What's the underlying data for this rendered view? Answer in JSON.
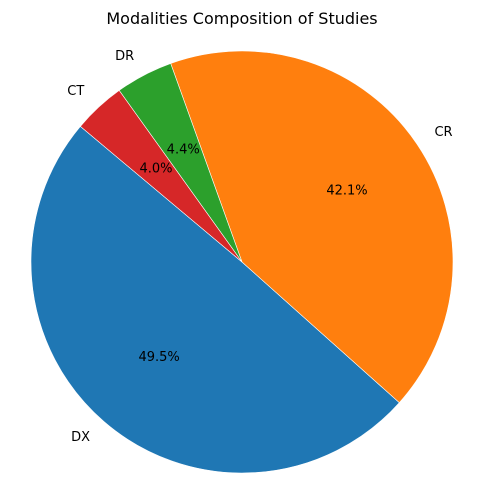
{
  "chart_data": {
    "type": "pie",
    "title": "Modalities Composition of Studies",
    "start_angle_deg": 140,
    "direction": "counterclockwise",
    "slices": [
      {
        "label": "DX",
        "value": 49.5,
        "pct_text": "49.5%",
        "color": "#1f77b4"
      },
      {
        "label": "CR",
        "value": 42.1,
        "pct_text": "42.1%",
        "color": "#ff7f0e"
      },
      {
        "label": "DR",
        "value": 4.4,
        "pct_text": "4.4%",
        "color": "#2ca02c"
      },
      {
        "label": "CT",
        "value": 4.0,
        "pct_text": "4.0%",
        "color": "#d62728"
      }
    ]
  }
}
